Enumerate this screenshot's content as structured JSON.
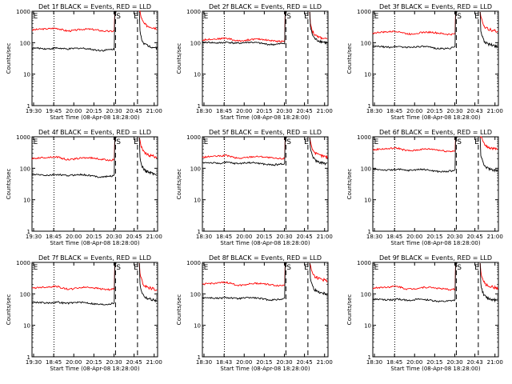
{
  "chart_data": [
    {
      "type": "line",
      "title": "Det 1f BLACK = Events, RED = LLD",
      "xlabel": "Start Time (08-Apr-08 18:28:00)",
      "ylabel": "Counts/sec",
      "y_scale": "log",
      "ylim": [
        1,
        1000
      ],
      "x_ticks": [
        "19:30",
        "19:45",
        "20:00",
        "20:15",
        "20:30",
        "20:45",
        "21:00"
      ],
      "y_ticks": [
        "1",
        "10",
        "100",
        "1000"
      ],
      "markers": [
        "E",
        "S",
        "E"
      ],
      "series": [
        {
          "color": "#ff0000",
          "level_before": 250,
          "level_after": 380
        },
        {
          "color": "#000000",
          "level_before": 62,
          "level_after": 90
        }
      ]
    },
    {
      "type": "line",
      "title": "Det 2f BLACK = Events, RED = LLD",
      "xlabel": "Start Time (08-Apr-08 18:28:00)",
      "ylabel": "Counts/sec",
      "y_scale": "log",
      "ylim": [
        1,
        1000
      ],
      "x_ticks": [
        "18:30",
        "18:45",
        "20:00",
        "20:15",
        "20:30",
        "20:45",
        "21:00"
      ],
      "y_ticks": [
        "1",
        "10",
        "100",
        "1000"
      ],
      "markers": [
        "E",
        "S",
        "E"
      ],
      "series": [
        {
          "color": "#ff0000",
          "level_before": 120,
          "level_after": 170
        },
        {
          "color": "#000000",
          "level_before": 95,
          "level_after": 130
        }
      ]
    },
    {
      "type": "line",
      "title": "Det 3f BLACK = Events, RED = LLD",
      "xlabel": "Start Time (08-Apr-08 18:28:00)",
      "ylabel": "Counts/sec",
      "y_scale": "log",
      "ylim": [
        1,
        1000
      ],
      "x_ticks": [
        "18:30",
        "18:45",
        "20:00",
        "20:15",
        "20:30",
        "20:43",
        "21:00"
      ],
      "y_ticks": [
        "1",
        "10",
        "100",
        "1000"
      ],
      "markers": [
        "E",
        "S",
        "E"
      ],
      "series": [
        {
          "color": "#ff0000",
          "level_before": 200,
          "level_after": 300
        },
        {
          "color": "#000000",
          "level_before": 70,
          "level_after": 100
        }
      ]
    },
    {
      "type": "line",
      "title": "Det 4f BLACK = Events, RED = LLD",
      "xlabel": "Start Time (08-Apr-08 18:28:00)",
      "ylabel": "Counts/sec",
      "y_scale": "log",
      "ylim": [
        1,
        1000
      ],
      "x_ticks": [
        "19:30",
        "18:45",
        "20:00",
        "20:15",
        "20:30",
        "20:45",
        "21:00"
      ],
      "y_ticks": [
        "1",
        "10",
        "100",
        "1000"
      ],
      "markers": [
        "E",
        "S",
        "E"
      ],
      "series": [
        {
          "color": "#ff0000",
          "level_before": 200,
          "level_after": 300
        },
        {
          "color": "#000000",
          "level_before": 58,
          "level_after": 85
        }
      ]
    },
    {
      "type": "line",
      "title": "Det 5f BLACK = Events, RED = LLD",
      "xlabel": "Start Time (08-Apr-08 18:28:00)",
      "ylabel": "Counts/sec",
      "y_scale": "log",
      "ylim": [
        1,
        1000
      ],
      "x_ticks": [
        "18:30",
        "18:45",
        "20:00",
        "20:15",
        "20:30",
        "20:45",
        "21:00"
      ],
      "y_ticks": [
        "1",
        "10",
        "100",
        "1000"
      ],
      "markers": [
        "E",
        "S",
        "E"
      ],
      "series": [
        {
          "color": "#ff0000",
          "level_before": 220,
          "level_after": 300
        },
        {
          "color": "#000000",
          "level_before": 140,
          "level_after": 180
        }
      ]
    },
    {
      "type": "line",
      "title": "Det 6f BLACK = Events, RED = LLD",
      "xlabel": "Start Time (08-Apr-08 18:28:00)",
      "ylabel": "Counts/sec",
      "y_scale": "log",
      "ylim": [
        1,
        1000
      ],
      "x_ticks": [
        "18:30",
        "18:45",
        "20:00",
        "20:15",
        "20:30",
        "20:45",
        "21:00"
      ],
      "y_ticks": [
        "1",
        "10",
        "100",
        "1000"
      ],
      "markers": [
        "E",
        "S",
        "E"
      ],
      "series": [
        {
          "color": "#ff0000",
          "level_before": 380,
          "level_after": 520
        },
        {
          "color": "#000000",
          "level_before": 85,
          "level_after": 110
        }
      ]
    },
    {
      "type": "line",
      "title": "Det 7f BLACK = Events, RED = LLD",
      "xlabel": "Start Time (08-Apr-08 18:28:00)",
      "ylabel": "Counts/sec",
      "y_scale": "log",
      "ylim": [
        1,
        1000
      ],
      "x_ticks": [
        "19:30",
        "18:45",
        "20:00",
        "20:15",
        "20:30",
        "20:45",
        "21:00"
      ],
      "y_ticks": [
        "1",
        "10",
        "100",
        "1000"
      ],
      "markers": [
        "E",
        "S",
        "E"
      ],
      "series": [
        {
          "color": "#ff0000",
          "level_before": 150,
          "level_after": 180
        },
        {
          "color": "#000000",
          "level_before": 50,
          "level_after": 80
        }
      ]
    },
    {
      "type": "line",
      "title": "Det 8f BLACK = Events, RED = LLD",
      "xlabel": "Start Time (08-Apr-08 18:28:00)",
      "ylabel": "Counts/sec",
      "y_scale": "log",
      "ylim": [
        1,
        1000
      ],
      "x_ticks": [
        "18:30",
        "18:43",
        "20:00",
        "20:15",
        "20:30",
        "20:45",
        "21:00"
      ],
      "y_ticks": [
        "1",
        "10",
        "100",
        "1000"
      ],
      "markers": [
        "E",
        "S",
        "E"
      ],
      "series": [
        {
          "color": "#ff0000",
          "level_before": 200,
          "level_after": 350
        },
        {
          "color": "#000000",
          "level_before": 70,
          "level_after": 130
        }
      ]
    },
    {
      "type": "line",
      "title": "Det 9f BLACK = Events, RED = LLD",
      "xlabel": "Start Time (08-Apr-08 18:28:00)",
      "ylabel": "Counts/sec",
      "y_scale": "log",
      "ylim": [
        1,
        1000
      ],
      "x_ticks": [
        "18:30",
        "18:45",
        "20:00",
        "20:15",
        "20:30",
        "20:43",
        "21:00"
      ],
      "y_ticks": [
        "1",
        "10",
        "100",
        "1000"
      ],
      "markers": [
        "E",
        "S",
        "E"
      ],
      "series": [
        {
          "color": "#ff0000",
          "level_before": 150,
          "level_after": 200
        },
        {
          "color": "#000000",
          "level_before": 62,
          "level_after": 80
        }
      ]
    }
  ]
}
